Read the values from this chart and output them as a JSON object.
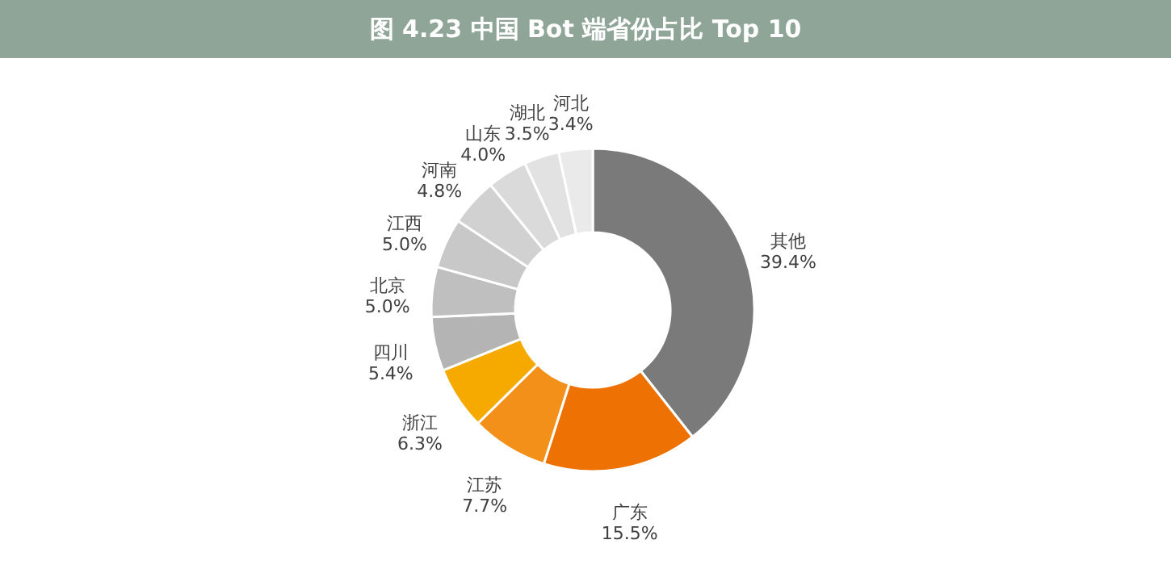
{
  "chart_data": {
    "type": "donut",
    "title": "图 4.23 中国 Bot 端省份占比 Top 10",
    "categories": [
      "其他",
      "广东",
      "江苏",
      "浙江",
      "四川",
      "北京",
      "江西",
      "河南",
      "山东",
      "湖北",
      "河北"
    ],
    "values": [
      39.4,
      15.5,
      7.7,
      6.3,
      5.4,
      5.0,
      5.0,
      4.8,
      4.0,
      3.5,
      3.4
    ],
    "value_labels": [
      "39.4%",
      "15.5%",
      "7.7%",
      "6.3%",
      "5.4%",
      "5.0%",
      "5.0%",
      "4.8%",
      "4.0%",
      "3.5%",
      "3.4%"
    ],
    "colors": [
      "#7a7a7a",
      "#ee7203",
      "#f39019",
      "#f6aa00",
      "#b4b4b4",
      "#bfbfbf",
      "#c8c8c8",
      "#d1d1d1",
      "#dadada",
      "#e2e2e2",
      "#eaeaea"
    ],
    "legend": false
  }
}
